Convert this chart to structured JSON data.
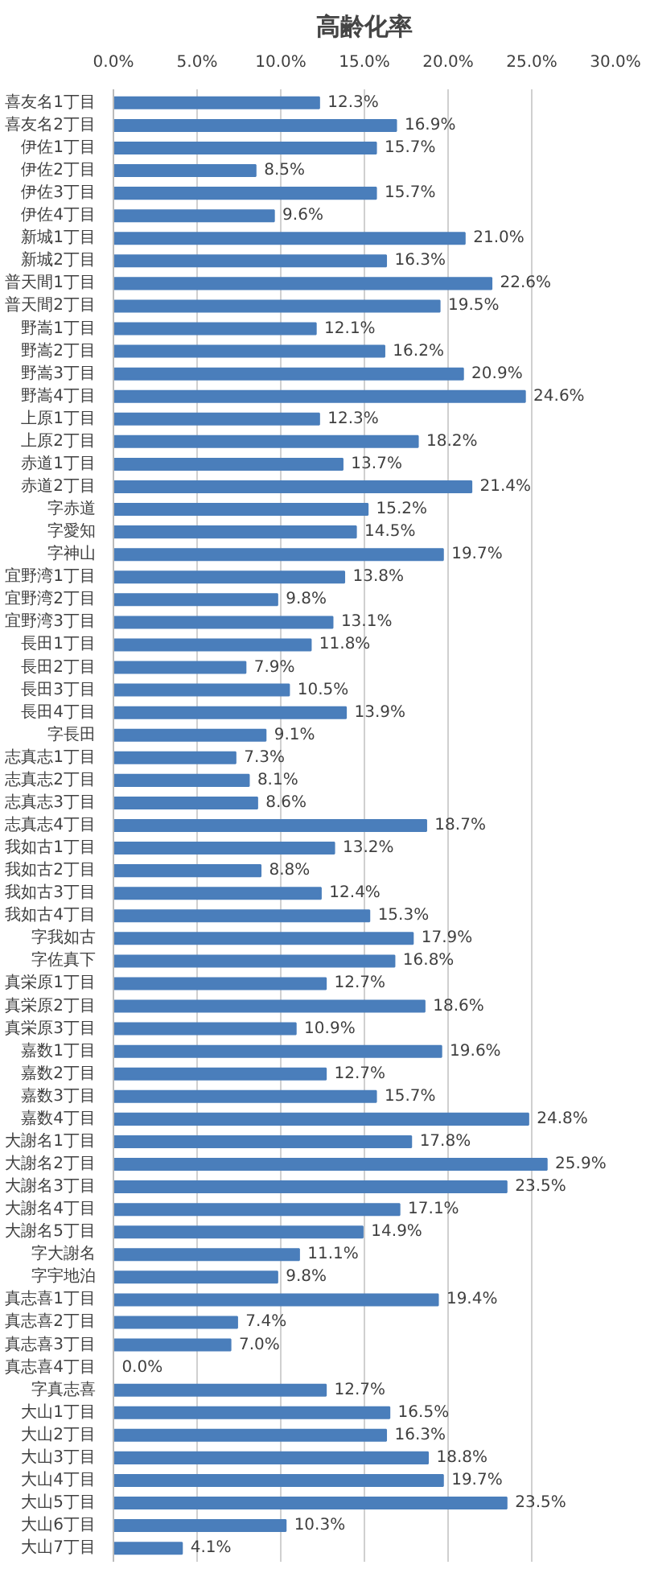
{
  "chart_data": {
    "type": "bar",
    "orientation": "horizontal",
    "title": "高齢化率",
    "categories": [
      "喜友名1丁目",
      "喜友名2丁目",
      "伊佐1丁目",
      "伊佐2丁目",
      "伊佐3丁目",
      "伊佐4丁目",
      "新城1丁目",
      "新城2丁目",
      "普天間1丁目",
      "普天間2丁目",
      "野嵩1丁目",
      "野嵩2丁目",
      "野嵩3丁目",
      "野嵩4丁目",
      "上原1丁目",
      "上原2丁目",
      "赤道1丁目",
      "赤道2丁目",
      "字赤道",
      "字愛知",
      "字神山",
      "宜野湾1丁目",
      "宜野湾2丁目",
      "宜野湾3丁目",
      "長田1丁目",
      "長田2丁目",
      "長田3丁目",
      "長田4丁目",
      "字長田",
      "志真志1丁目",
      "志真志2丁目",
      "志真志3丁目",
      "志真志4丁目",
      "我如古1丁目",
      "我如古2丁目",
      "我如古3丁目",
      "我如古4丁目",
      "字我如古",
      "字佐真下",
      "真栄原1丁目",
      "真栄原2丁目",
      "真栄原3丁目",
      "嘉数1丁目",
      "嘉数2丁目",
      "嘉数3丁目",
      "嘉数4丁目",
      "大謝名1丁目",
      "大謝名2丁目",
      "大謝名3丁目",
      "大謝名4丁目",
      "大謝名5丁目",
      "字大謝名",
      "字宇地泊",
      "真志喜1丁目",
      "真志喜2丁目",
      "真志喜3丁目",
      "真志喜4丁目",
      "字真志喜",
      "大山1丁目",
      "大山2丁目",
      "大山3丁目",
      "大山4丁目",
      "大山5丁目",
      "大山6丁目",
      "大山7丁目"
    ],
    "values": [
      12.3,
      16.9,
      15.7,
      8.5,
      15.7,
      9.6,
      21.0,
      16.3,
      22.6,
      19.5,
      12.1,
      16.2,
      20.9,
      24.6,
      12.3,
      18.2,
      13.7,
      21.4,
      15.2,
      14.5,
      19.7,
      13.8,
      9.8,
      13.1,
      11.8,
      7.9,
      10.5,
      13.9,
      9.1,
      7.3,
      8.1,
      8.6,
      18.7,
      13.2,
      8.8,
      12.4,
      15.3,
      17.9,
      16.8,
      12.7,
      18.6,
      10.9,
      19.6,
      12.7,
      15.7,
      24.8,
      17.8,
      25.9,
      23.5,
      17.1,
      14.9,
      11.1,
      9.8,
      19.4,
      7.4,
      7.0,
      0.0,
      12.7,
      16.5,
      16.3,
      18.8,
      19.7,
      23.5,
      10.3,
      4.1
    ],
    "value_labels": [
      "12.3%",
      "16.9%",
      "15.7%",
      "8.5%",
      "15.7%",
      "9.6%",
      "21.0%",
      "16.3%",
      "22.6%",
      "19.5%",
      "12.1%",
      "16.2%",
      "20.9%",
      "24.6%",
      "12.3%",
      "18.2%",
      "13.7%",
      "21.4%",
      "15.2%",
      "14.5%",
      "19.7%",
      "13.8%",
      "9.8%",
      "13.1%",
      "11.8%",
      "7.9%",
      "10.5%",
      "13.9%",
      "9.1%",
      "7.3%",
      "8.1%",
      "8.6%",
      "18.7%",
      "13.2%",
      "8.8%",
      "12.4%",
      "15.3%",
      "17.9%",
      "16.8%",
      "12.7%",
      "18.6%",
      "10.9%",
      "19.6%",
      "12.7%",
      "15.7%",
      "24.8%",
      "17.8%",
      "25.9%",
      "23.5%",
      "17.1%",
      "14.9%",
      "11.1%",
      "9.8%",
      "19.4%",
      "7.4%",
      "7.0%",
      "0.0%",
      "12.7%",
      "16.5%",
      "16.3%",
      "18.8%",
      "19.7%",
      "23.5%",
      "10.3%",
      "4.1%"
    ],
    "color": "#4a7ebb",
    "xlim": [
      0,
      30
    ],
    "xticks": [
      {
        "value": 0,
        "label": "0.0%"
      },
      {
        "value": 5,
        "label": "5.0%"
      },
      {
        "value": 10,
        "label": "10.0%"
      },
      {
        "value": 15,
        "label": "15.0%"
      },
      {
        "value": 20,
        "label": "20.0%"
      },
      {
        "value": 25,
        "label": "25.0%"
      },
      {
        "value": 30,
        "label": "30.0%"
      }
    ],
    "grid": "x"
  }
}
